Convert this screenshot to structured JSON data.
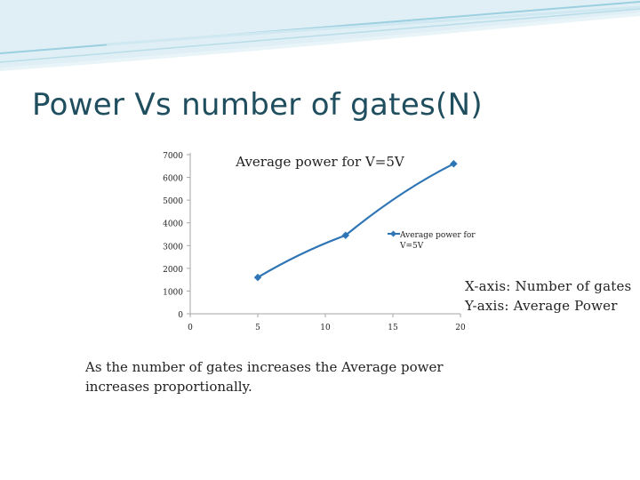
{
  "slide": {
    "title": "Power Vs number of gates(N)",
    "note_x": "X-axis: Number of gates",
    "note_y": "Y-axis: Average Power",
    "body": "As the number of gates increases the Average power increases proportionally."
  },
  "chart_data": {
    "type": "line",
    "title": "Average power for V=5V",
    "xlabel": "",
    "ylabel": "",
    "xlim": [
      0,
      20
    ],
    "ylim": [
      0,
      7000
    ],
    "x_ticks": [
      0,
      5,
      10,
      15,
      20
    ],
    "y_ticks": [
      0,
      1000,
      2000,
      3000,
      4000,
      5000,
      6000,
      7000
    ],
    "x_tick_labels": [
      "0",
      "5",
      "10",
      "15",
      "20"
    ],
    "y_tick_labels": [
      "0",
      "1000",
      "2000",
      "3000",
      "4000",
      "5000",
      "6000",
      "7000"
    ],
    "grid": false,
    "legend_position": "right",
    "series": [
      {
        "name": "Average power for V=5V",
        "legend_line1": "Average power for",
        "legend_line2": "V=5V",
        "color": "#2e75b6",
        "x": [
          5,
          11.5,
          19.5
        ],
        "y": [
          1600,
          3450,
          6600
        ]
      }
    ]
  }
}
